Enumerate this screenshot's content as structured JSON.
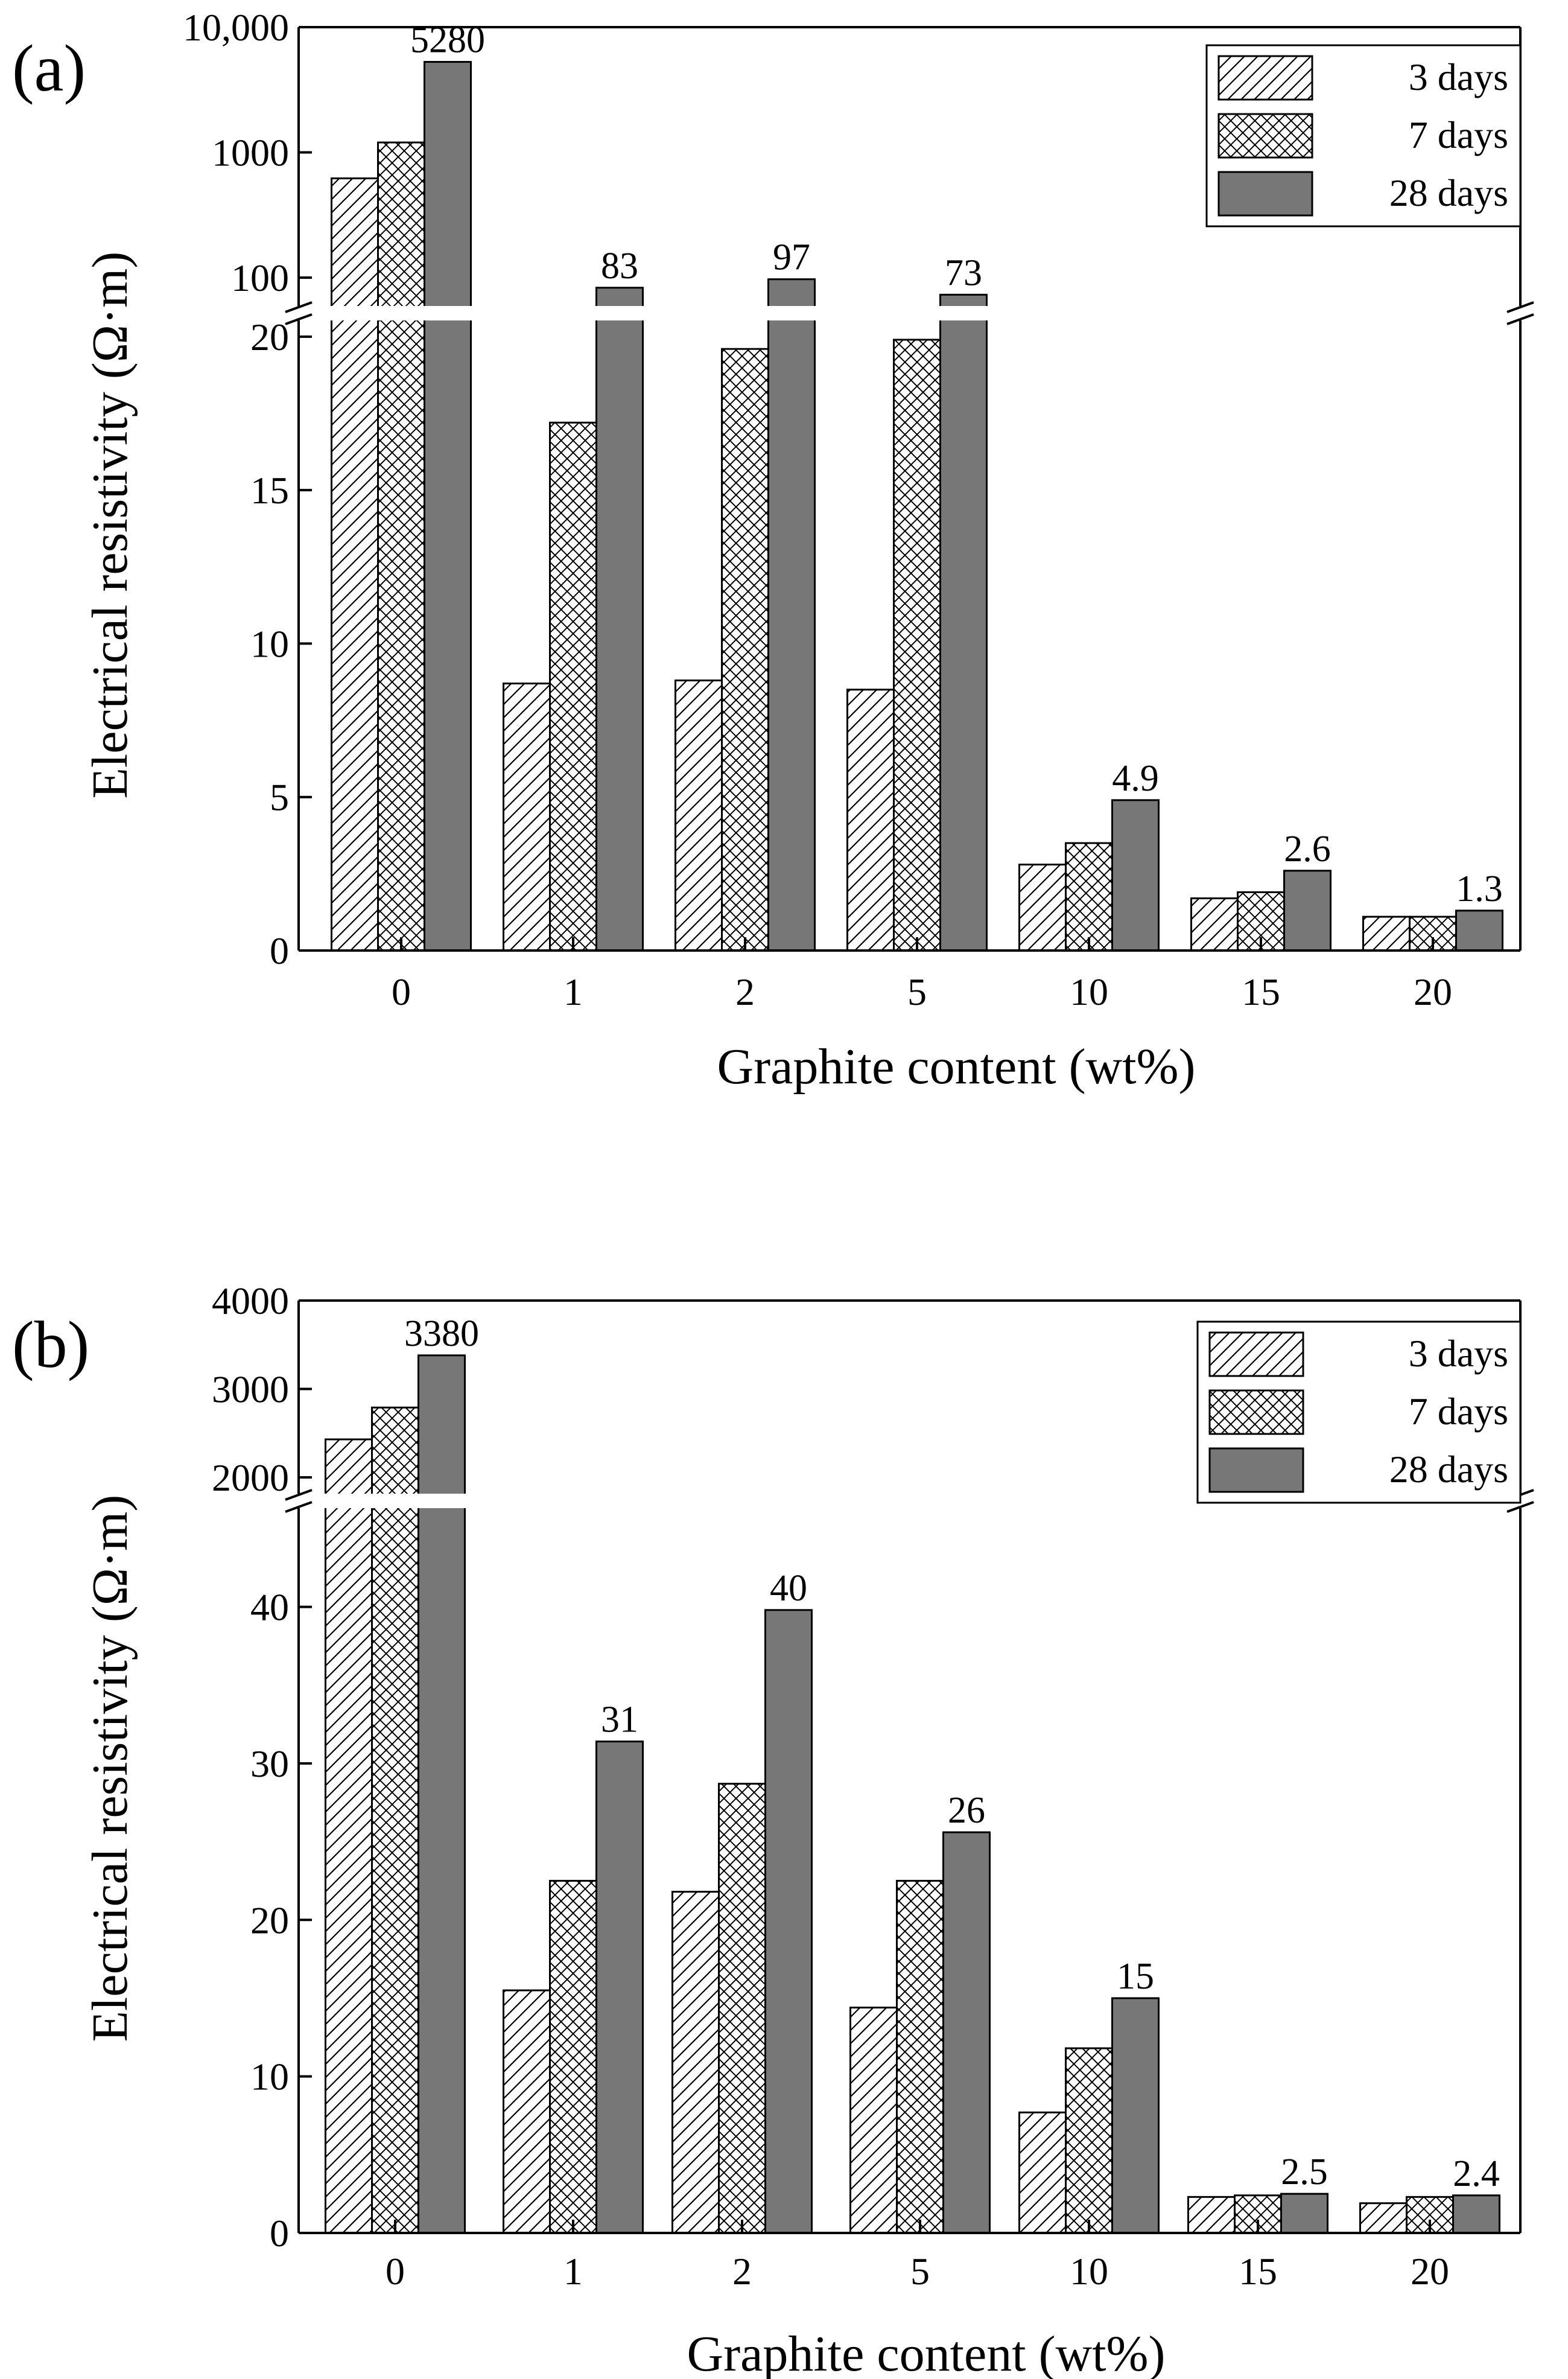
{
  "figure": {
    "panels": [
      {
        "letter": "(a)"
      },
      {
        "letter": "(b)"
      }
    ]
  },
  "colors": {
    "bar_28_days": "#777777",
    "outline": "#000000",
    "background": "#ffffff"
  },
  "chart_data": [
    {
      "type": "bar",
      "panel": "(a)",
      "xlabel": "Graphite content (wt%)",
      "ylabel": "Electrical resistivity (Ω·m)",
      "categories": [
        "0",
        "1",
        "2",
        "5",
        "10",
        "15",
        "20"
      ],
      "series": [
        {
          "name": "3 days",
          "fill": "diagonal-hatch",
          "values": [
            620,
            8.7,
            8.8,
            8.5,
            2.8,
            1.7,
            1.1
          ]
        },
        {
          "name": "7 days",
          "fill": "cross-hatch",
          "values": [
            1200,
            17.2,
            19.6,
            19.9,
            3.5,
            1.9,
            1.1
          ]
        },
        {
          "name": "28 days",
          "fill": "solid-gray",
          "values": [
            5280,
            83,
            97,
            73,
            4.9,
            2.6,
            1.3
          ]
        }
      ],
      "data_labels": [
        "5280",
        "83",
        "97",
        "73",
        "4.9",
        "2.6",
        "1.3"
      ],
      "axis_break": {
        "lower_range": [
          0,
          21
        ],
        "upper_range": [
          60,
          10000
        ],
        "upper_scale": "log"
      },
      "lower_ticks": [
        "0",
        "5",
        "10",
        "15",
        "20"
      ],
      "upper_ticks": [
        "100",
        "1000",
        "10,000"
      ],
      "legend": {
        "position": "top-right",
        "entries": [
          "3 days",
          "7 days",
          "28 days"
        ]
      }
    },
    {
      "type": "bar",
      "panel": "(b)",
      "xlabel": "Graphite content (wt%)",
      "ylabel": "Electrical resistivity (Ω·m)",
      "categories": [
        "0",
        "1",
        "2",
        "5",
        "10",
        "15",
        "20"
      ],
      "series": [
        {
          "name": "3 days",
          "fill": "diagonal-hatch",
          "values": [
            2430,
            15.5,
            21.8,
            14.4,
            7.7,
            2.3,
            1.9
          ]
        },
        {
          "name": "7 days",
          "fill": "cross-hatch",
          "values": [
            2790,
            22.5,
            28.7,
            22.5,
            11.8,
            2.4,
            2.3
          ]
        },
        {
          "name": "28 days",
          "fill": "solid-gray",
          "values": [
            3380,
            31.4,
            39.8,
            25.6,
            15.0,
            2.5,
            2.4
          ]
        }
      ],
      "data_labels": [
        "3380",
        "31",
        "40",
        "26",
        "15",
        "2.5",
        "2.4"
      ],
      "axis_break": {
        "lower_range": [
          0,
          46
        ],
        "upper_range": [
          1850,
          4000
        ],
        "upper_scale": "linear"
      },
      "lower_ticks": [
        "0",
        "10",
        "20",
        "30",
        "40"
      ],
      "upper_ticks": [
        "2000",
        "3000",
        "4000"
      ],
      "legend": {
        "position": "top-right",
        "entries": [
          "3 days",
          "7 days",
          "28 days"
        ]
      }
    }
  ]
}
